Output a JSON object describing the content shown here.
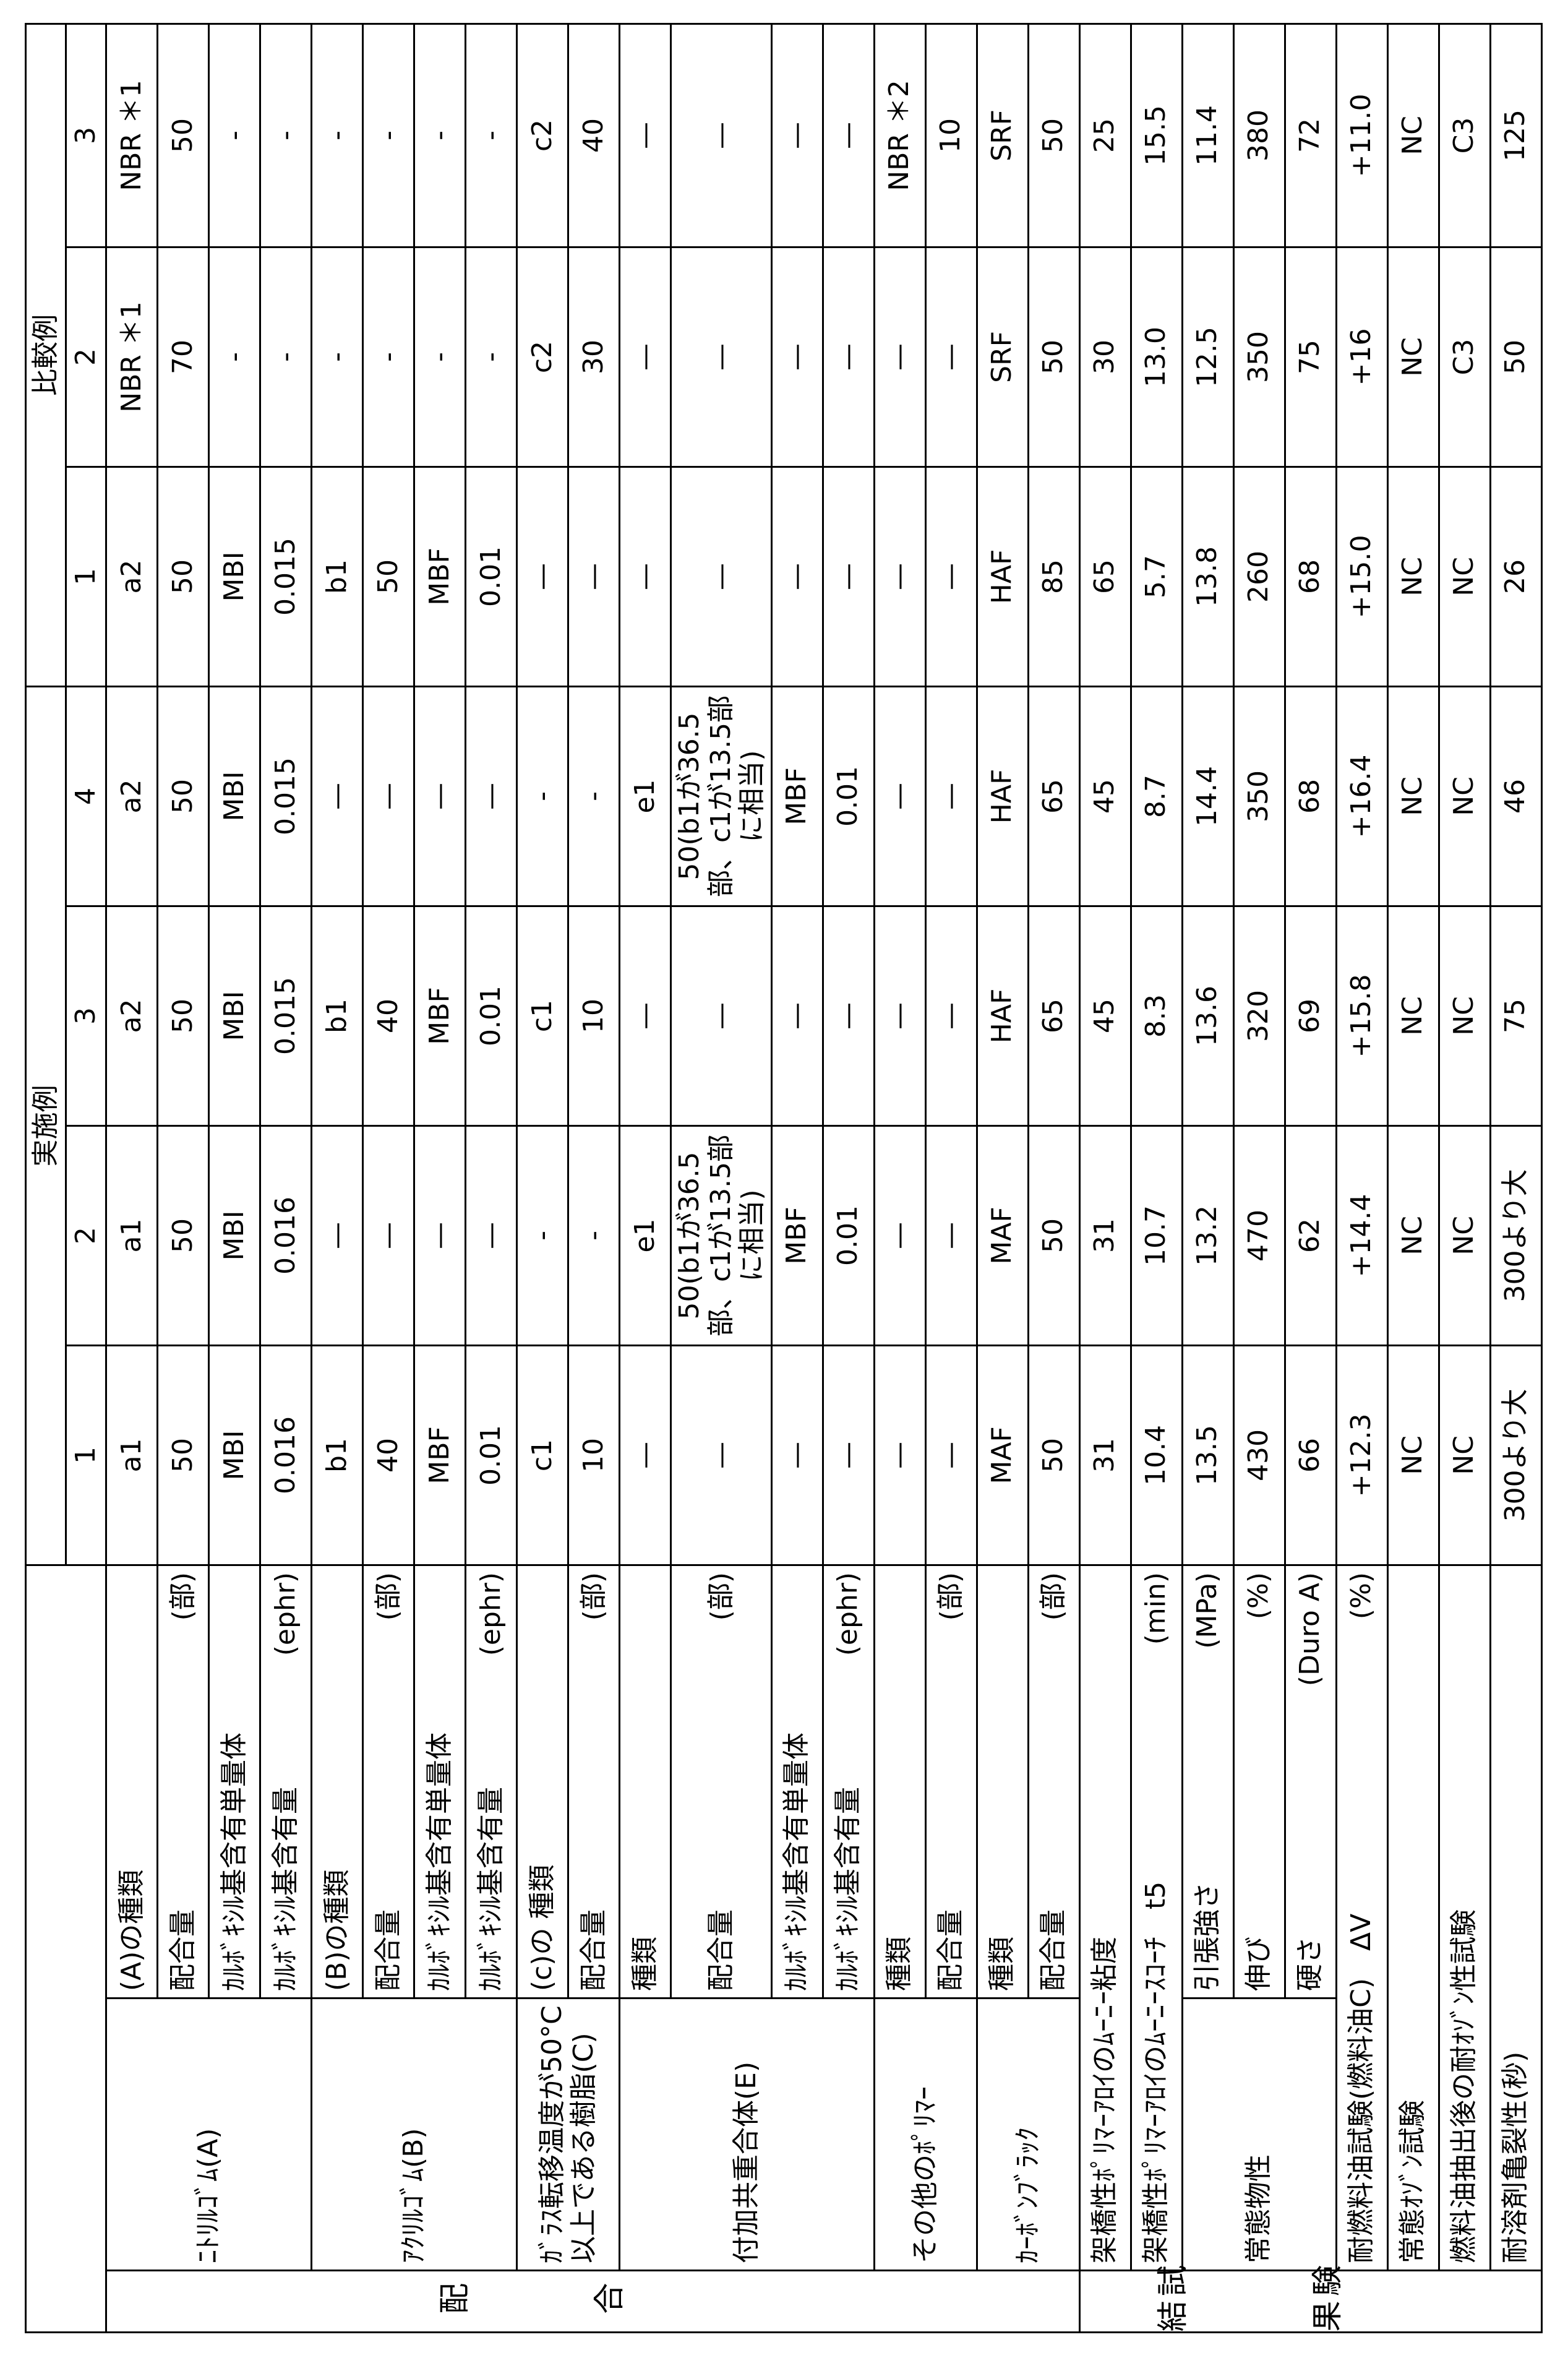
{
  "header": {
    "examples_label": "実施例",
    "comparative_label": "比較例",
    "example_numbers": [
      1,
      2,
      3,
      4
    ],
    "comparative_numbers": [
      1,
      2,
      3
    ]
  },
  "sections": [
    {
      "label": "配合",
      "groups": [
        {
          "label": "ﾆﾄﾘﾙｺﾞﾑ(A)",
          "items": [
            {
              "label": "(A)の種類",
              "values": [
                "a1",
                "a1",
                "a2",
                "a2",
                "a2",
                "NBR ＊1",
                "NBR ＊1"
              ]
            },
            {
              "label": "配合量",
              "unit": "(部)",
              "values": [
                "50",
                "50",
                "50",
                "50",
                "50",
                "70",
                "50"
              ]
            },
            {
              "label": "ｶﾙﾎﾞｷｼﾙ基含有単量体",
              "values": [
                "MBI",
                "MBI",
                "MBI",
                "MBI",
                "MBI",
                "-",
                "-"
              ]
            },
            {
              "label": "ｶﾙﾎﾞｷｼﾙ基含有量",
              "unit": "(ephr)",
              "values": [
                "0.016",
                "0.016",
                "0.015",
                "0.015",
                "0.015",
                "-",
                "-"
              ]
            }
          ]
        },
        {
          "label": "ｱｸﾘﾙｺﾞﾑ(B)",
          "items": [
            {
              "label": "(B)の種類",
              "values": [
                "b1",
                "—",
                "b1",
                "—",
                "b1",
                "-",
                "-"
              ]
            },
            {
              "label": "配合量",
              "unit": "(部)",
              "values": [
                "40",
                "—",
                "40",
                "—",
                "50",
                "-",
                "-"
              ]
            },
            {
              "label": "ｶﾙﾎﾞｷｼﾙ基含有単量体",
              "values": [
                "MBF",
                "—",
                "MBF",
                "—",
                "MBF",
                "-",
                "-"
              ]
            },
            {
              "label": "ｶﾙﾎﾞｷｼﾙ基含有量",
              "unit": "(ephr)",
              "values": [
                "0.01",
                "—",
                "0.01",
                "—",
                "0.01",
                "-",
                "-"
              ]
            }
          ]
        },
        {
          "label": "ｶﾞﾗｽ転移温度が50°C以上である樹脂(C)",
          "items": [
            {
              "label": "(c)の 種類",
              "values": [
                "c1",
                "-",
                "c1",
                "-",
                "—",
                "c2",
                "c2"
              ]
            },
            {
              "label": "配合量",
              "unit": "(部)",
              "values": [
                "10",
                "-",
                "10",
                "-",
                "—",
                "30",
                "40"
              ]
            }
          ]
        },
        {
          "label": "付加共重合体(E)",
          "items": [
            {
              "label": "種類",
              "values": [
                "—",
                "e1",
                "—",
                "e1",
                "—",
                "—",
                "—"
              ]
            },
            {
              "label": "配合量",
              "unit": "(部)",
              "values": [
                "—",
                "50(b1が36.5部、c1が13.5部に相当)",
                "—",
                "50(b1が36.5部、c1が13.5部に相当)",
                "—",
                "—",
                "—"
              ]
            },
            {
              "label": "ｶﾙﾎﾞｷｼﾙ基含有単量体",
              "values": [
                "—",
                "MBF",
                "—",
                "MBF",
                "—",
                "—",
                "—"
              ]
            },
            {
              "label": "ｶﾙﾎﾞｷｼﾙ基含有量",
              "unit": "(ephr)",
              "values": [
                "—",
                "0.01",
                "—",
                "0.01",
                "—",
                "—",
                "—"
              ]
            }
          ]
        },
        {
          "label": "その他のﾎﾟﾘﾏｰ",
          "items": [
            {
              "label": "種類",
              "values": [
                "—",
                "—",
                "—",
                "—",
                "—",
                "—",
                "NBR ＊2"
              ]
            },
            {
              "label": "配合量",
              "unit": "(部)",
              "values": [
                "—",
                "—",
                "—",
                "—",
                "—",
                "—",
                "10"
              ]
            }
          ]
        },
        {
          "label": "ｶｰﾎﾞﾝﾌﾞﾗｯｸ",
          "items": [
            {
              "label": "種類",
              "values": [
                "MAF",
                "MAF",
                "HAF",
                "HAF",
                "HAF",
                "SRF",
                "SRF"
              ]
            },
            {
              "label": "配合量",
              "unit": "(部)",
              "values": [
                "50",
                "50",
                "65",
                "65",
                "85",
                "50",
                "50"
              ]
            }
          ]
        }
      ]
    },
    {
      "label": "試験結果",
      "groups": [
        {
          "items": [
            {
              "label": "架橋性ﾎﾟﾘﾏｰｱﾛｲのﾑｰﾆｰ粘度",
              "values": [
                "31",
                "31",
                "45",
                "45",
                "65",
                "30",
                "25"
              ]
            }
          ]
        },
        {
          "items": [
            {
              "label": "架橋性ﾎﾟﾘﾏｰｱﾛｲのﾑｰﾆｰｽｺｰﾁ　t5",
              "unit": "(min)",
              "values": [
                "10.4",
                "10.7",
                "8.3",
                "8.7",
                "5.7",
                "13.0",
                "15.5"
              ]
            }
          ]
        },
        {
          "label": "常態物性",
          "items": [
            {
              "label": "引張強さ",
              "unit": "(MPa)",
              "values": [
                "13.5",
                "13.2",
                "13.6",
                "14.4",
                "13.8",
                "12.5",
                "11.4"
              ]
            },
            {
              "label": "伸び",
              "unit": "(%)",
              "values": [
                "430",
                "470",
                "320",
                "350",
                "260",
                "350",
                "380"
              ]
            },
            {
              "label": "硬さ",
              "unit": "(Duro A)",
              "values": [
                "66",
                "62",
                "69",
                "68",
                "68",
                "75",
                "72"
              ]
            }
          ]
        },
        {
          "items": [
            {
              "label": "耐燃料油試験(燃料油C)　ΔV",
              "unit": "(%)",
              "values": [
                "+12.3",
                "+14.4",
                "+15.8",
                "+16.4",
                "+15.0",
                "+16",
                "+11.0"
              ]
            }
          ]
        },
        {
          "items": [
            {
              "label": "常態ｵｿﾞﾝ試験",
              "values": [
                "NC",
                "NC",
                "NC",
                "NC",
                "NC",
                "NC",
                "NC"
              ]
            }
          ]
        },
        {
          "items": [
            {
              "label": "燃料油抽出後の耐ｵｿﾞﾝ性試験",
              "values": [
                "NC",
                "NC",
                "NC",
                "NC",
                "NC",
                "C3",
                "C3"
              ]
            }
          ]
        },
        {
          "items": [
            {
              "label": "耐溶剤亀裂性(秒)",
              "values": [
                "300より大",
                "300より大",
                "75",
                "46",
                "26",
                "50",
                "125"
              ]
            }
          ]
        }
      ]
    }
  ]
}
